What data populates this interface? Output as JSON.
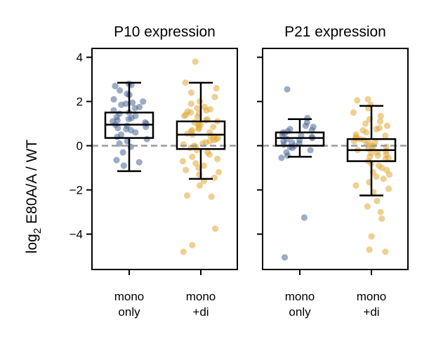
{
  "colors": {
    "mono_only": "#4a6796",
    "mono_di": "#e0a93a",
    "zero_line": "#9a9a9a"
  },
  "y_label": {
    "prefix": "log",
    "subscript": "2",
    "suffix": " E80A/A / WT"
  },
  "chart_data": [
    {
      "type": "box",
      "title": "P10 expression",
      "ylim": [
        -5.6,
        4.4
      ],
      "yticks": [
        4,
        2,
        0,
        -2,
        -4
      ],
      "ytick_labels": [
        "4",
        "2",
        "0",
        "−2",
        "−4"
      ],
      "categories": [
        {
          "line1": "mono",
          "line2": "only"
        },
        {
          "line1": "mono",
          "line2": "+di"
        }
      ],
      "boxes": [
        {
          "whisker_low": -1.15,
          "q1": 0.35,
          "median": 0.95,
          "q3": 1.5,
          "whisker_high": 2.85,
          "points": [
            2.8,
            2.75,
            2.7,
            2.5,
            2.35,
            2.3,
            2.1,
            2.0,
            1.95,
            1.9,
            1.85,
            1.75,
            1.7,
            1.6,
            1.5,
            1.45,
            1.35,
            1.3,
            1.25,
            1.2,
            1.15,
            1.1,
            1.05,
            1.0,
            0.95,
            0.9,
            0.85,
            0.8,
            0.75,
            0.7,
            0.6,
            0.5,
            0.4,
            0.3,
            0.2,
            0.1,
            -0.05,
            -0.3,
            -0.65,
            -0.75,
            -0.9
          ]
        },
        {
          "whisker_low": -1.5,
          "q1": -0.15,
          "median": 0.5,
          "q3": 1.1,
          "whisker_high": 2.85,
          "points": [
            3.8,
            2.85,
            2.6,
            2.4,
            2.2,
            2.0,
            1.9,
            1.75,
            1.7,
            1.65,
            1.6,
            1.55,
            1.5,
            1.45,
            1.4,
            1.35,
            1.3,
            1.2,
            1.15,
            1.1,
            1.05,
            1.0,
            0.95,
            0.9,
            0.85,
            0.8,
            0.75,
            0.7,
            0.65,
            0.6,
            0.55,
            0.5,
            0.45,
            0.4,
            0.35,
            0.3,
            0.25,
            0.2,
            0.15,
            0.1,
            0.05,
            0.0,
            -0.05,
            -0.1,
            -0.2,
            -0.3,
            -0.4,
            -0.5,
            -0.6,
            -0.7,
            -0.8,
            -0.9,
            -1.0,
            -1.1,
            -1.2,
            -1.3,
            -1.45,
            -1.6,
            -1.8,
            -2.25,
            -2.3,
            -3.75,
            -4.5,
            -4.8
          ]
        }
      ]
    },
    {
      "type": "box",
      "title": "P21 expression",
      "ylim": [
        -5.6,
        4.4
      ],
      "yticks": [
        4,
        2,
        0,
        -2,
        -4
      ],
      "ytick_labels": [
        "",
        "",
        "",
        "",
        ""
      ],
      "categories": [
        {
          "line1": "mono",
          "line2": "only"
        },
        {
          "line1": "mono",
          "line2": "+di"
        }
      ],
      "boxes": [
        {
          "whisker_low": -0.5,
          "q1": 0.0,
          "median": 0.35,
          "q3": 0.6,
          "whisker_high": 1.2,
          "points": [
            2.55,
            1.25,
            1.05,
            0.9,
            0.85,
            0.75,
            0.7,
            0.65,
            0.6,
            0.55,
            0.5,
            0.45,
            0.4,
            0.35,
            0.3,
            0.25,
            0.2,
            0.15,
            0.1,
            0.05,
            0.0,
            -0.05,
            -0.1,
            -0.2,
            -0.3,
            -0.45,
            -0.55,
            -3.25,
            -5.05
          ]
        },
        {
          "whisker_low": -2.25,
          "q1": -0.7,
          "median": -0.2,
          "q3": 0.3,
          "whisker_high": 1.8,
          "points": [
            2.1,
            2.05,
            1.85,
            1.7,
            1.5,
            1.35,
            1.2,
            1.1,
            1.0,
            0.9,
            0.8,
            0.75,
            0.7,
            0.6,
            0.5,
            0.45,
            0.4,
            0.35,
            0.3,
            0.25,
            0.2,
            0.15,
            0.1,
            0.05,
            0.0,
            -0.05,
            -0.1,
            -0.15,
            -0.2,
            -0.25,
            -0.3,
            -0.35,
            -0.4,
            -0.45,
            -0.5,
            -0.55,
            -0.6,
            -0.7,
            -0.8,
            -0.9,
            -1.0,
            -1.1,
            -1.2,
            -1.3,
            -1.4,
            -1.5,
            -1.65,
            -1.8,
            -1.95,
            -2.1,
            -2.5,
            -2.75,
            -3.0,
            -3.3,
            -4.1,
            -4.7,
            -4.8
          ]
        }
      ]
    }
  ]
}
